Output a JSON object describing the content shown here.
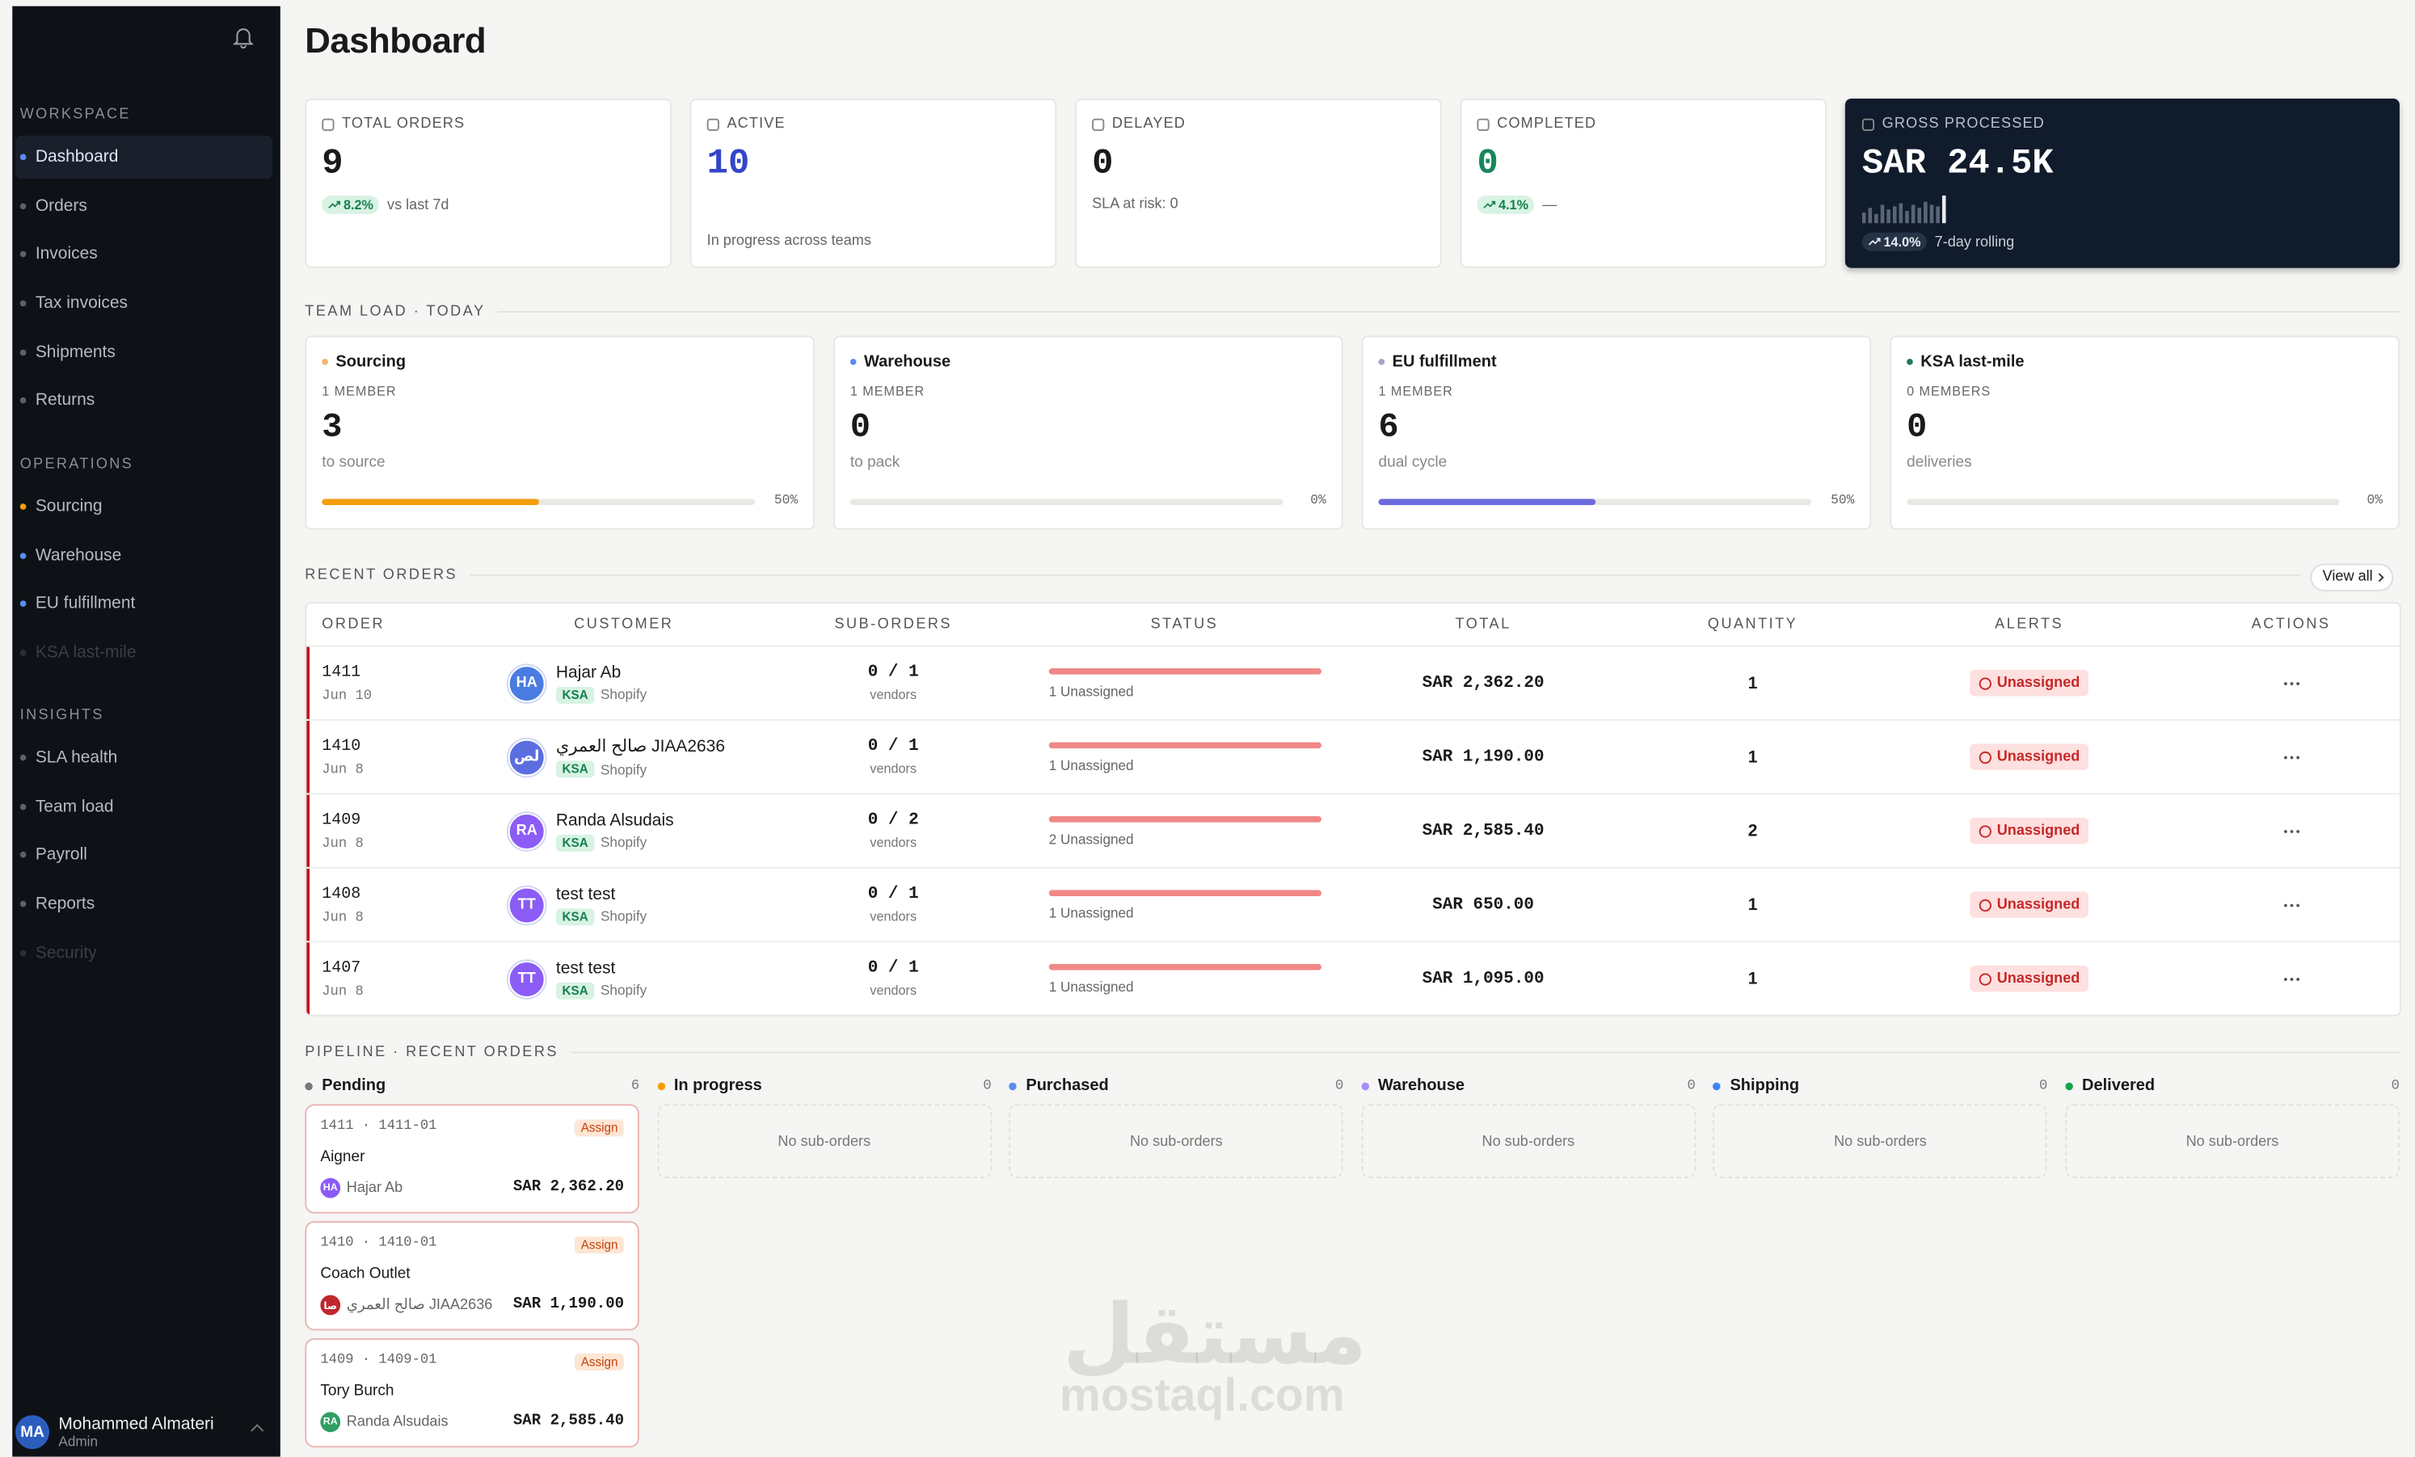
{
  "sidebar": {
    "sections": [
      {
        "title": "WORKSPACE",
        "items": [
          {
            "label": "Dashboard",
            "state": "active",
            "color": "#5b8def"
          },
          {
            "label": "Orders"
          },
          {
            "label": "Invoices"
          },
          {
            "label": "Tax invoices"
          },
          {
            "label": "Shipments"
          },
          {
            "label": "Returns"
          }
        ]
      },
      {
        "title": "OPERATIONS",
        "items": [
          {
            "label": "Sourcing",
            "color": "#f59e0b"
          },
          {
            "label": "Warehouse",
            "color": "#5b8def"
          },
          {
            "label": "EU fulfillment",
            "color": "#5b8def"
          },
          {
            "label": "KSA last-mile",
            "state": "disabled"
          }
        ]
      },
      {
        "title": "INSIGHTS",
        "items": [
          {
            "label": "SLA health"
          },
          {
            "label": "Team load"
          },
          {
            "label": "Payroll"
          },
          {
            "label": "Reports"
          },
          {
            "label": "Security",
            "state": "disabled"
          }
        ]
      }
    ],
    "user": {
      "initials": "MA",
      "name": "Mohammed Almateri",
      "role": "Admin"
    }
  },
  "header": {
    "title": "Dashboard"
  },
  "kpis": [
    {
      "label": "TOTAL ORDERS",
      "value": "9",
      "change": "8.2%",
      "note": "vs last 7d"
    },
    {
      "label": "ACTIVE",
      "value": "10",
      "color": "#3346c8",
      "note": "In progress across teams"
    },
    {
      "label": "DELAYED",
      "value": "0",
      "note": "SLA at risk: 0"
    },
    {
      "label": "COMPLETED",
      "value": "0",
      "color": "#15875a",
      "change": "4.1%",
      "note": "—"
    },
    {
      "label": "GROSS PROCESSED",
      "value": "SAR 24.5K",
      "change": "14.0%",
      "note": "7-day rolling"
    }
  ],
  "team_load": {
    "title": "TEAM LOAD · TODAY",
    "teams": [
      {
        "name": "Sourcing",
        "dot": "#f0b56a",
        "members": "1 MEMBER",
        "count": "3",
        "unit": "to source",
        "load": {
          "value": 50,
          "label": "50%"
        },
        "color": "#f59e0b"
      },
      {
        "name": "Warehouse",
        "dot": "#5b8def",
        "members": "1 MEMBER",
        "count": "0",
        "unit": "to pack",
        "load": {
          "value": 0,
          "label": "0%"
        },
        "color": "#5b8def"
      },
      {
        "name": "EU fulfillment",
        "dot": "#a5a5c8",
        "members": "1 MEMBER",
        "count": "6",
        "unit": "dual cycle",
        "load": {
          "value": 50,
          "label": "50%"
        },
        "color": "#6b6be0"
      },
      {
        "name": "KSA last-mile",
        "dot": "#1f7a5a",
        "members": "0 MEMBERS",
        "count": "0",
        "unit": "deliveries",
        "load": {
          "value": 0,
          "label": "0%"
        },
        "color": "#1f7a5a"
      }
    ]
  },
  "recent_orders": {
    "title": "RECENT ORDERS",
    "link": "View all",
    "columns": [
      "ORDER",
      "CUSTOMER",
      "SUB-ORDERS",
      "STATUS",
      "TOTAL",
      "QUANTITY",
      "ALERTS",
      "ACTIONS"
    ],
    "rows": [
      {
        "order": "1411",
        "date": "Jun 10",
        "initials": "HA",
        "avatar": "#4a7be0",
        "customer": "Hajar Ab",
        "region": "KSA",
        "source": "Shopify",
        "suborders": "0 / 1",
        "sub_note": "vendors",
        "status": "1 Unassigned",
        "total": "SAR 2,362.20",
        "quantity": "1",
        "alert": "Unassigned"
      },
      {
        "order": "1410",
        "date": "Jun 8",
        "initials": "لص",
        "avatar": "#5b6ee0",
        "customer": "صالح العمري JIAA2636",
        "region": "KSA",
        "source": "Shopify",
        "suborders": "0 / 1",
        "sub_note": "vendors",
        "status": "1 Unassigned",
        "total": "SAR 1,190.00",
        "quantity": "1",
        "alert": "Unassigned"
      },
      {
        "order": "1409",
        "date": "Jun 8",
        "initials": "RA",
        "avatar": "#8b5cf6",
        "customer": "Randa Alsudais",
        "region": "KSA",
        "source": "Shopify",
        "suborders": "0 / 2",
        "sub_note": "vendors",
        "status": "2 Unassigned",
        "total": "SAR 2,585.40",
        "quantity": "2",
        "alert": "Unassigned"
      },
      {
        "order": "1408",
        "date": "Jun 8",
        "initials": "TT",
        "avatar": "#8b5cf6",
        "customer": "test test",
        "region": "KSA",
        "source": "Shopify",
        "suborders": "0 / 1",
        "sub_note": "vendors",
        "status": "1 Unassigned",
        "total": "SAR 650.00",
        "quantity": "1",
        "alert": "Unassigned"
      },
      {
        "order": "1407",
        "date": "Jun 8",
        "initials": "TT",
        "avatar": "#8b5cf6",
        "customer": "test test",
        "region": "KSA",
        "source": "Shopify",
        "suborders": "0 / 1",
        "sub_note": "vendors",
        "status": "1 Unassigned",
        "total": "SAR 1,095.00",
        "quantity": "1",
        "alert": "Unassigned"
      }
    ]
  },
  "pipeline": {
    "title": "PIPELINE · RECENT ORDERS",
    "columns": [
      {
        "name": "Pending",
        "dot": "#777",
        "count": "6",
        "cards": [
          {
            "id": "1411 · 1411-01",
            "action": "Assign",
            "brand": "Aigner",
            "initials": "HA",
            "avatar": "#8b5cf6",
            "customer": "Hajar Ab",
            "total": "SAR 2,362.20"
          },
          {
            "id": "1410 · 1410-01",
            "action": "Assign",
            "brand": "Coach Outlet",
            "initials": "صا",
            "avatar": "#c0262d",
            "customer": "صالح العمري JIAA2636",
            "total": "SAR 1,190.00"
          },
          {
            "id": "1409 · 1409-01",
            "action": "Assign",
            "brand": "Tory Burch",
            "initials": "RA",
            "avatar": "#2f9e63",
            "customer": "Randa Alsudais",
            "total": "SAR 2,585.40"
          }
        ]
      },
      {
        "name": "In progress",
        "dot": "#f59e0b",
        "count": "0",
        "empty": "No sub-orders"
      },
      {
        "name": "Purchased",
        "dot": "#5b8def",
        "count": "0",
        "empty": "No sub-orders"
      },
      {
        "name": "Warehouse",
        "dot": "#a78bfa",
        "count": "0",
        "empty": "No sub-orders"
      },
      {
        "name": "Shipping",
        "dot": "#3b82f6",
        "count": "0",
        "empty": "No sub-orders"
      },
      {
        "name": "Delivered",
        "dot": "#16a34a",
        "count": "0",
        "empty": "No sub-orders"
      }
    ]
  },
  "watermark": {
    "logo": "مستقل",
    "site": "mostaql.com"
  }
}
